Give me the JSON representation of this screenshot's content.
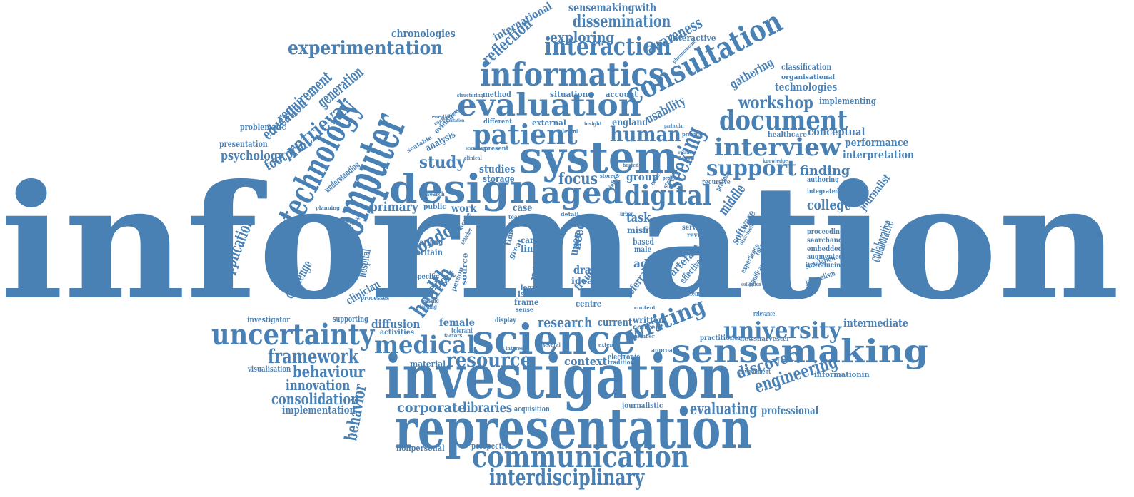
{
  "cloud": {
    "color": "#4a81b4",
    "words": [
      "information",
      "investigation",
      "representation",
      "science",
      "system",
      "computer",
      "design",
      "technology",
      "informatics",
      "evaluation",
      "consultation",
      "sensemaking",
      "patient",
      "aged",
      "seeking",
      "communication",
      "document",
      "interview",
      "uncertainty",
      "medical",
      "digital",
      "interaction",
      "experimentation",
      "interdisciplinary",
      "university",
      "health",
      "support",
      "retrieval",
      "human",
      "writing",
      "resource",
      "framework",
      "engineering",
      "dissemination",
      "workshop",
      "discovery",
      "london",
      "consolidation",
      "behavior",
      "application",
      "evaluating",
      "innovation",
      "behaviour",
      "research",
      "exploring",
      "study",
      "focus",
      "college",
      "middle",
      "collaborative",
      "corporate",
      "libraries",
      "education",
      "generation",
      "requirement",
      "reflection",
      "awareness",
      "sensemakingwith",
      "international",
      "chronologies",
      "footprint",
      "psychology",
      "challenge",
      "hospital",
      "primary",
      "professional",
      "implementation",
      "intermediate",
      "interpretation",
      "performance",
      "conceptual",
      "finding",
      "journalist",
      "technologies",
      "classification",
      "implementing",
      "usability",
      "gathering",
      "england",
      "diffusion",
      "female",
      "current",
      "context",
      "report",
      "clinician",
      "studies",
      "task",
      "software",
      "artefact",
      "adult",
      "drag",
      "paper",
      "need",
      "user",
      "case",
      "work",
      "group",
      "storage",
      "analysis",
      "understanding",
      "problematic",
      "presentation",
      "visualisation",
      "supporting",
      "investigator",
      "acquisition",
      "material",
      "nonpersonal",
      "perspective",
      "informationin",
      "written",
      "journalistic",
      "electronic",
      "traditional",
      "concept",
      "experience",
      "significant",
      "simulation",
      "journalism",
      "proceeding",
      "searchand",
      "embedded",
      "augmented",
      "introducing",
      "authoring",
      "integrated",
      "recursive",
      "previous",
      "rapporteur",
      "newsharvester",
      "practitioner",
      "relevance",
      "environment",
      "fraud",
      "referral",
      "effective",
      "element",
      "service",
      "review",
      "misfit",
      "male",
      "based",
      "link",
      "care",
      "britain",
      "varying",
      "legal",
      "idea",
      "frame",
      "issue",
      "centre",
      "specific",
      "source",
      "activities",
      "display",
      "tolerant",
      "approach",
      "method",
      "situation",
      "account",
      "external",
      "relevant",
      "different",
      "present",
      "evidence",
      "scalable",
      "public",
      "interactive",
      "organisational",
      "healthcare",
      "knowledge",
      "insight",
      "particular",
      "structuring",
      "essential",
      "contextual",
      "searching",
      "phenomenon",
      "scale",
      "searcher",
      "participant",
      "making",
      "looking",
      "processes",
      "person",
      "sense",
      "great",
      "time",
      "stage",
      "team",
      "occur",
      "detail",
      "urban",
      "content",
      "creation",
      "inform",
      "effect",
      "strategy",
      "clinical",
      "hosted",
      "stored",
      "control",
      "problem",
      "planning",
      "limitation",
      "rotation",
      "flexible",
      "provide",
      "interest",
      "several",
      "extend",
      "member",
      "factors",
      "collection",
      "discussion",
      "search"
    ]
  }
}
